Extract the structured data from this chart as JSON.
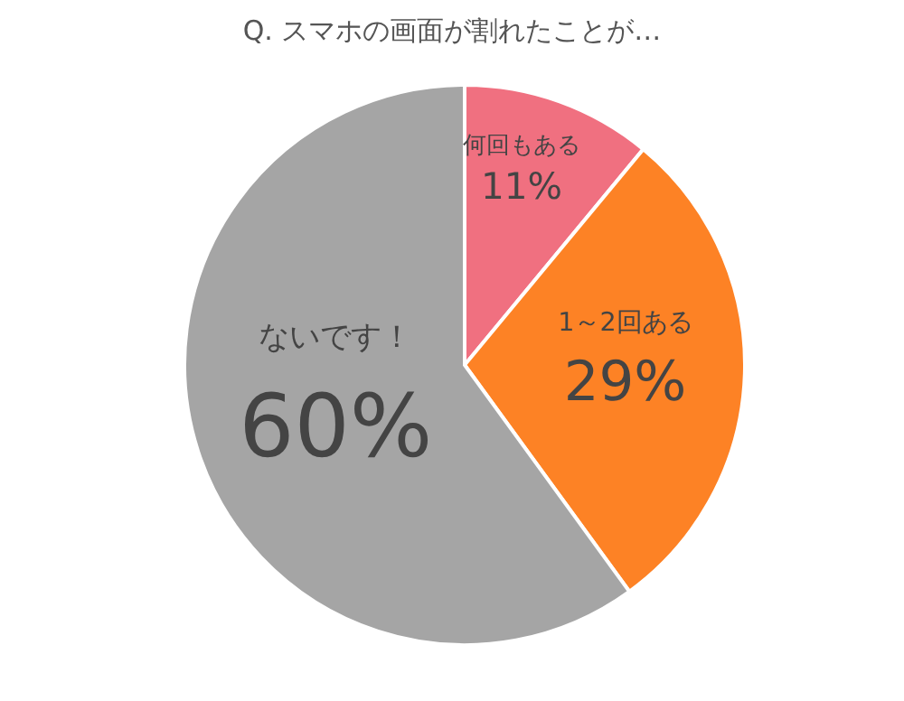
{
  "chart_data": {
    "type": "pie",
    "title": "Q. スマホの画面が割れたことが…",
    "categories": [
      "何回もある",
      "1～2回ある",
      "ないです！"
    ],
    "values": [
      11,
      29,
      60
    ],
    "value_labels": [
      "11%",
      "29%",
      "60%"
    ],
    "colors": [
      "#f07080",
      "#fd8225",
      "#a5a5a5"
    ]
  }
}
